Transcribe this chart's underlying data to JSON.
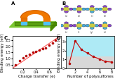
{
  "panel_c": {
    "scatter_x": [
      0.08,
      0.15,
      0.2,
      0.25,
      0.3,
      0.35,
      0.4,
      0.45,
      0.5,
      0.55,
      0.6,
      0.65,
      0.7
    ],
    "scatter_y": [
      0.45,
      0.8,
      1.05,
      1.2,
      1.35,
      1.5,
      1.55,
      1.65,
      1.8,
      1.85,
      2.05,
      2.25,
      2.5
    ],
    "line_x": [
      0.05,
      0.75
    ],
    "line_y": [
      0.25,
      2.75
    ],
    "scatter_color": "#cc0000",
    "line_color": "#ff5555",
    "xlabel": "Charge transfer (e)",
    "ylabel": "Binding energy (eV)",
    "label": "C",
    "xlim": [
      0.04,
      0.78
    ],
    "ylim": [
      0.2,
      2.8
    ],
    "xticks": [
      0.2,
      0.4,
      0.6
    ],
    "yticks": [
      0.5,
      1.0,
      1.5,
      2.0,
      2.5
    ]
  },
  "panel_d": {
    "x": [
      1,
      2,
      3,
      4,
      5,
      6,
      7,
      8
    ],
    "y": [
      0.55,
      3.1,
      2.1,
      1.7,
      1.3,
      1.05,
      0.75,
      0.7
    ],
    "line_color": "#cc0000",
    "marker_color": "#cc0000",
    "xlabel": "Number of polysulfones",
    "ylabel": "Binding energy (eV)",
    "label": "D",
    "region_top_color": "#aeeaf5",
    "region_bot_color": "#d8d8d8",
    "region_split_y": 1.35,
    "xlim": [
      0.5,
      8.5
    ],
    "ylim": [
      0.0,
      3.6
    ],
    "xticks": [
      2,
      4,
      6,
      8
    ],
    "yticks": [
      0,
      1,
      2,
      3
    ]
  },
  "panel_a_label": "A",
  "panel_b_label": "B",
  "bg_color": "#ffffff",
  "label_fontsize": 5,
  "tick_fontsize": 3.5,
  "axis_label_fontsize": 4
}
